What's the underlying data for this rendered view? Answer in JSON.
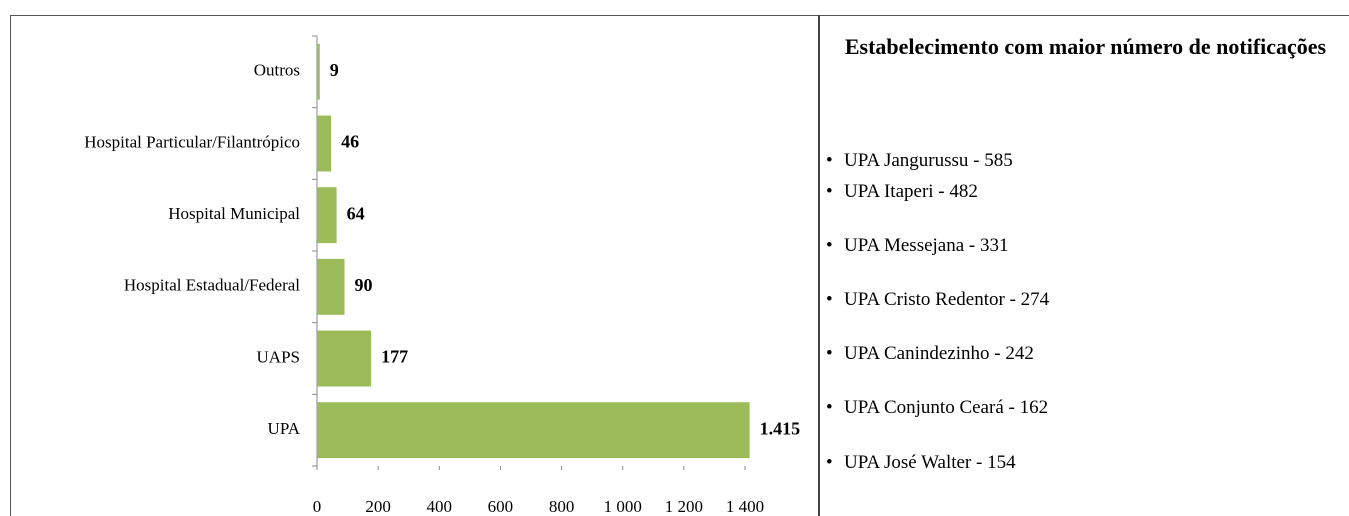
{
  "chart_data": {
    "type": "bar",
    "orientation": "horizontal",
    "categories": [
      "Outros",
      "Hospital Particular/Filantrópico",
      "Hospital Municipal",
      "Hospital Estadual/Federal",
      "UAPS",
      "UPA"
    ],
    "values": [
      9,
      46,
      64,
      90,
      177,
      1415
    ],
    "value_labels": [
      "9",
      "46",
      "64",
      "90",
      "177",
      "1.415"
    ],
    "color": "#9bbb59",
    "xlim": [
      0,
      1400
    ],
    "xticks": [
      0,
      200,
      400,
      600,
      800,
      {
        "value": 1000,
        "label": "1 000"
      },
      {
        "value": 1200,
        "label": "1 200"
      },
      {
        "value": 1400,
        "label": "1 400"
      }
    ]
  },
  "panel": {
    "title": "Estabelecimento com maior  número de notificações",
    "items": [
      "UPA Jangurussu - 585",
      "UPA Itaperi - 482",
      "UPA Messejana - 331",
      "UPA Cristo Redentor - 274",
      "UPA Canindezinho - 242",
      "UPA Conjunto Ceará - 162",
      "UPA José Walter - 154"
    ]
  }
}
